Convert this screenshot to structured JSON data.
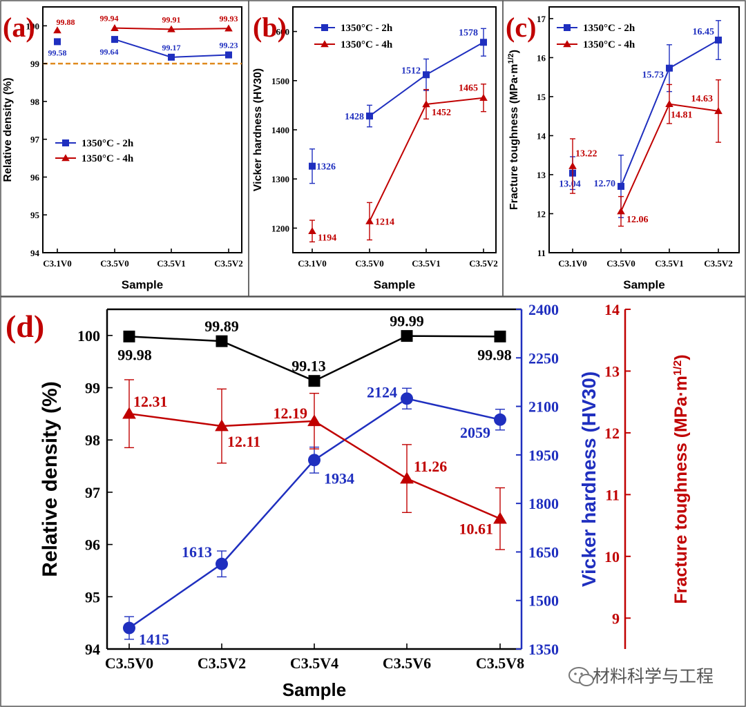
{
  "watermark": "材料科学与工程",
  "colors": {
    "blue": "#1f2fbf",
    "red": "#c00000",
    "black": "#000000",
    "ref": "#e08a1e"
  },
  "chart_data": [
    {
      "id": "a",
      "panel_label": "(a)",
      "type": "line",
      "categories": [
        "C3.1V0",
        "C3.5V0",
        "C3.5V1",
        "C3.5V2"
      ],
      "xlabel": "Sample",
      "ylabel": "Relative density (%)",
      "ylim": [
        94,
        100.5
      ],
      "yticks": [
        94,
        95,
        96,
        97,
        98,
        99,
        100
      ],
      "reference_line": 99,
      "legend": "center-left",
      "series": [
        {
          "name": "1350°C - 2h",
          "marker": "square",
          "color": "blue",
          "values": [
            99.58,
            99.64,
            99.17,
            99.23
          ],
          "labels": [
            "99.58",
            "99.64",
            "99.17",
            "99.23"
          ],
          "connect_from": 1
        },
        {
          "name": "1350°C - 4h",
          "marker": "triangle",
          "color": "red",
          "values": [
            99.88,
            99.94,
            99.91,
            99.93
          ],
          "labels": [
            "99.88",
            "99.94",
            "99.91",
            "99.93"
          ],
          "connect_from": 1
        }
      ]
    },
    {
      "id": "b",
      "panel_label": "(b)",
      "type": "line",
      "categories": [
        "C3.1V0",
        "C3.5V0",
        "C3.5V1",
        "C3.5V2"
      ],
      "xlabel": "Sample",
      "ylabel": "Vicker hardness (HV30)",
      "ylim": [
        1150,
        1650
      ],
      "yticks": [
        1200,
        1300,
        1400,
        1500,
        1600
      ],
      "legend": "top-left",
      "series": [
        {
          "name": "1350°C - 2h",
          "marker": "square",
          "color": "blue",
          "values": [
            1326,
            1428,
            1512,
            1578
          ],
          "errors": [
            35,
            22,
            32,
            28
          ],
          "labels": [
            "1326",
            "1428",
            "1512",
            "1578"
          ],
          "connect_from": 1
        },
        {
          "name": "1350°C - 4h",
          "marker": "triangle",
          "color": "red",
          "values": [
            1194,
            1214,
            1452,
            1465
          ],
          "errors": [
            22,
            38,
            30,
            28
          ],
          "labels": [
            "1194",
            "1214",
            "1452",
            "1465"
          ],
          "connect_from": 1
        }
      ]
    },
    {
      "id": "c",
      "panel_label": "(c)",
      "type": "line",
      "categories": [
        "C3.1V0",
        "C3.5V0",
        "C3.5V1",
        "C3.5V2"
      ],
      "xlabel": "Sample",
      "ylabel": "Fracture toughness (MPa·m",
      "ylabel_sup": "1/2",
      "ylabel_end": ")",
      "ylim": [
        11,
        17.3
      ],
      "yticks": [
        11,
        12,
        13,
        14,
        15,
        16,
        17
      ],
      "legend": "top-left",
      "series": [
        {
          "name": "1350°C - 2h",
          "marker": "square",
          "color": "blue",
          "values": [
            13.04,
            12.7,
            15.73,
            16.45
          ],
          "errors": [
            0.42,
            0.8,
            0.6,
            0.5
          ],
          "labels": [
            "13.04",
            "12.70",
            "15.73",
            "16.45"
          ],
          "connect_from": 1
        },
        {
          "name": "1350°C - 4h",
          "marker": "triangle",
          "color": "red",
          "values": [
            13.22,
            12.06,
            14.81,
            14.63
          ],
          "errors": [
            0.7,
            0.38,
            0.5,
            0.8
          ],
          "labels": [
            "13.22",
            "12.06",
            "14.81",
            "14.63"
          ],
          "connect_from": 1
        }
      ]
    },
    {
      "id": "d",
      "panel_label": "(d)",
      "type": "line",
      "categories": [
        "C3.5V0",
        "C3.5V2",
        "C3.5V4",
        "C3.5V6",
        "C3.5V8"
      ],
      "xlabel": "Sample",
      "axes": {
        "left": {
          "label": "Relative density (%)",
          "ylim": [
            94,
            100.5
          ],
          "yticks": [
            94,
            95,
            96,
            97,
            98,
            99,
            100
          ],
          "color": "black"
        },
        "right1": {
          "label": "Vicker hardness (HV30)",
          "ylim": [
            1350,
            2400
          ],
          "yticks": [
            1350,
            1500,
            1650,
            1800,
            1950,
            2100,
            2250,
            2400
          ],
          "color": "blue"
        },
        "right2": {
          "label": "Fracture toughness (MPa·m",
          "label_sup": "1/2",
          "label_end": ")",
          "ylim": [
            8.5,
            14
          ],
          "yticks": [
            9,
            10,
            11,
            12,
            13,
            14
          ],
          "color": "red"
        }
      },
      "series": [
        {
          "axis": "left",
          "marker": "square",
          "color": "black",
          "values": [
            99.98,
            99.89,
            99.13,
            99.99,
            99.98
          ],
          "labels": [
            "99.98",
            "99.89",
            "99.13",
            "99.99",
            "99.98"
          ]
        },
        {
          "axis": "right1",
          "marker": "circle",
          "color": "blue",
          "values": [
            1415,
            1613,
            1934,
            2124,
            2059
          ],
          "errors": [
            35,
            40,
            40,
            32,
            32
          ],
          "labels": [
            "1415",
            "1613",
            "1934",
            "2124",
            "2059"
          ]
        },
        {
          "axis": "right2",
          "marker": "triangle",
          "color": "red",
          "values": [
            12.31,
            12.11,
            12.19,
            11.26,
            10.61
          ],
          "errors": [
            0.55,
            0.6,
            0.45,
            0.55,
            0.5
          ],
          "labels": [
            "12.31",
            "12.11",
            "12.19",
            "11.26",
            "10.61"
          ]
        }
      ]
    }
  ]
}
